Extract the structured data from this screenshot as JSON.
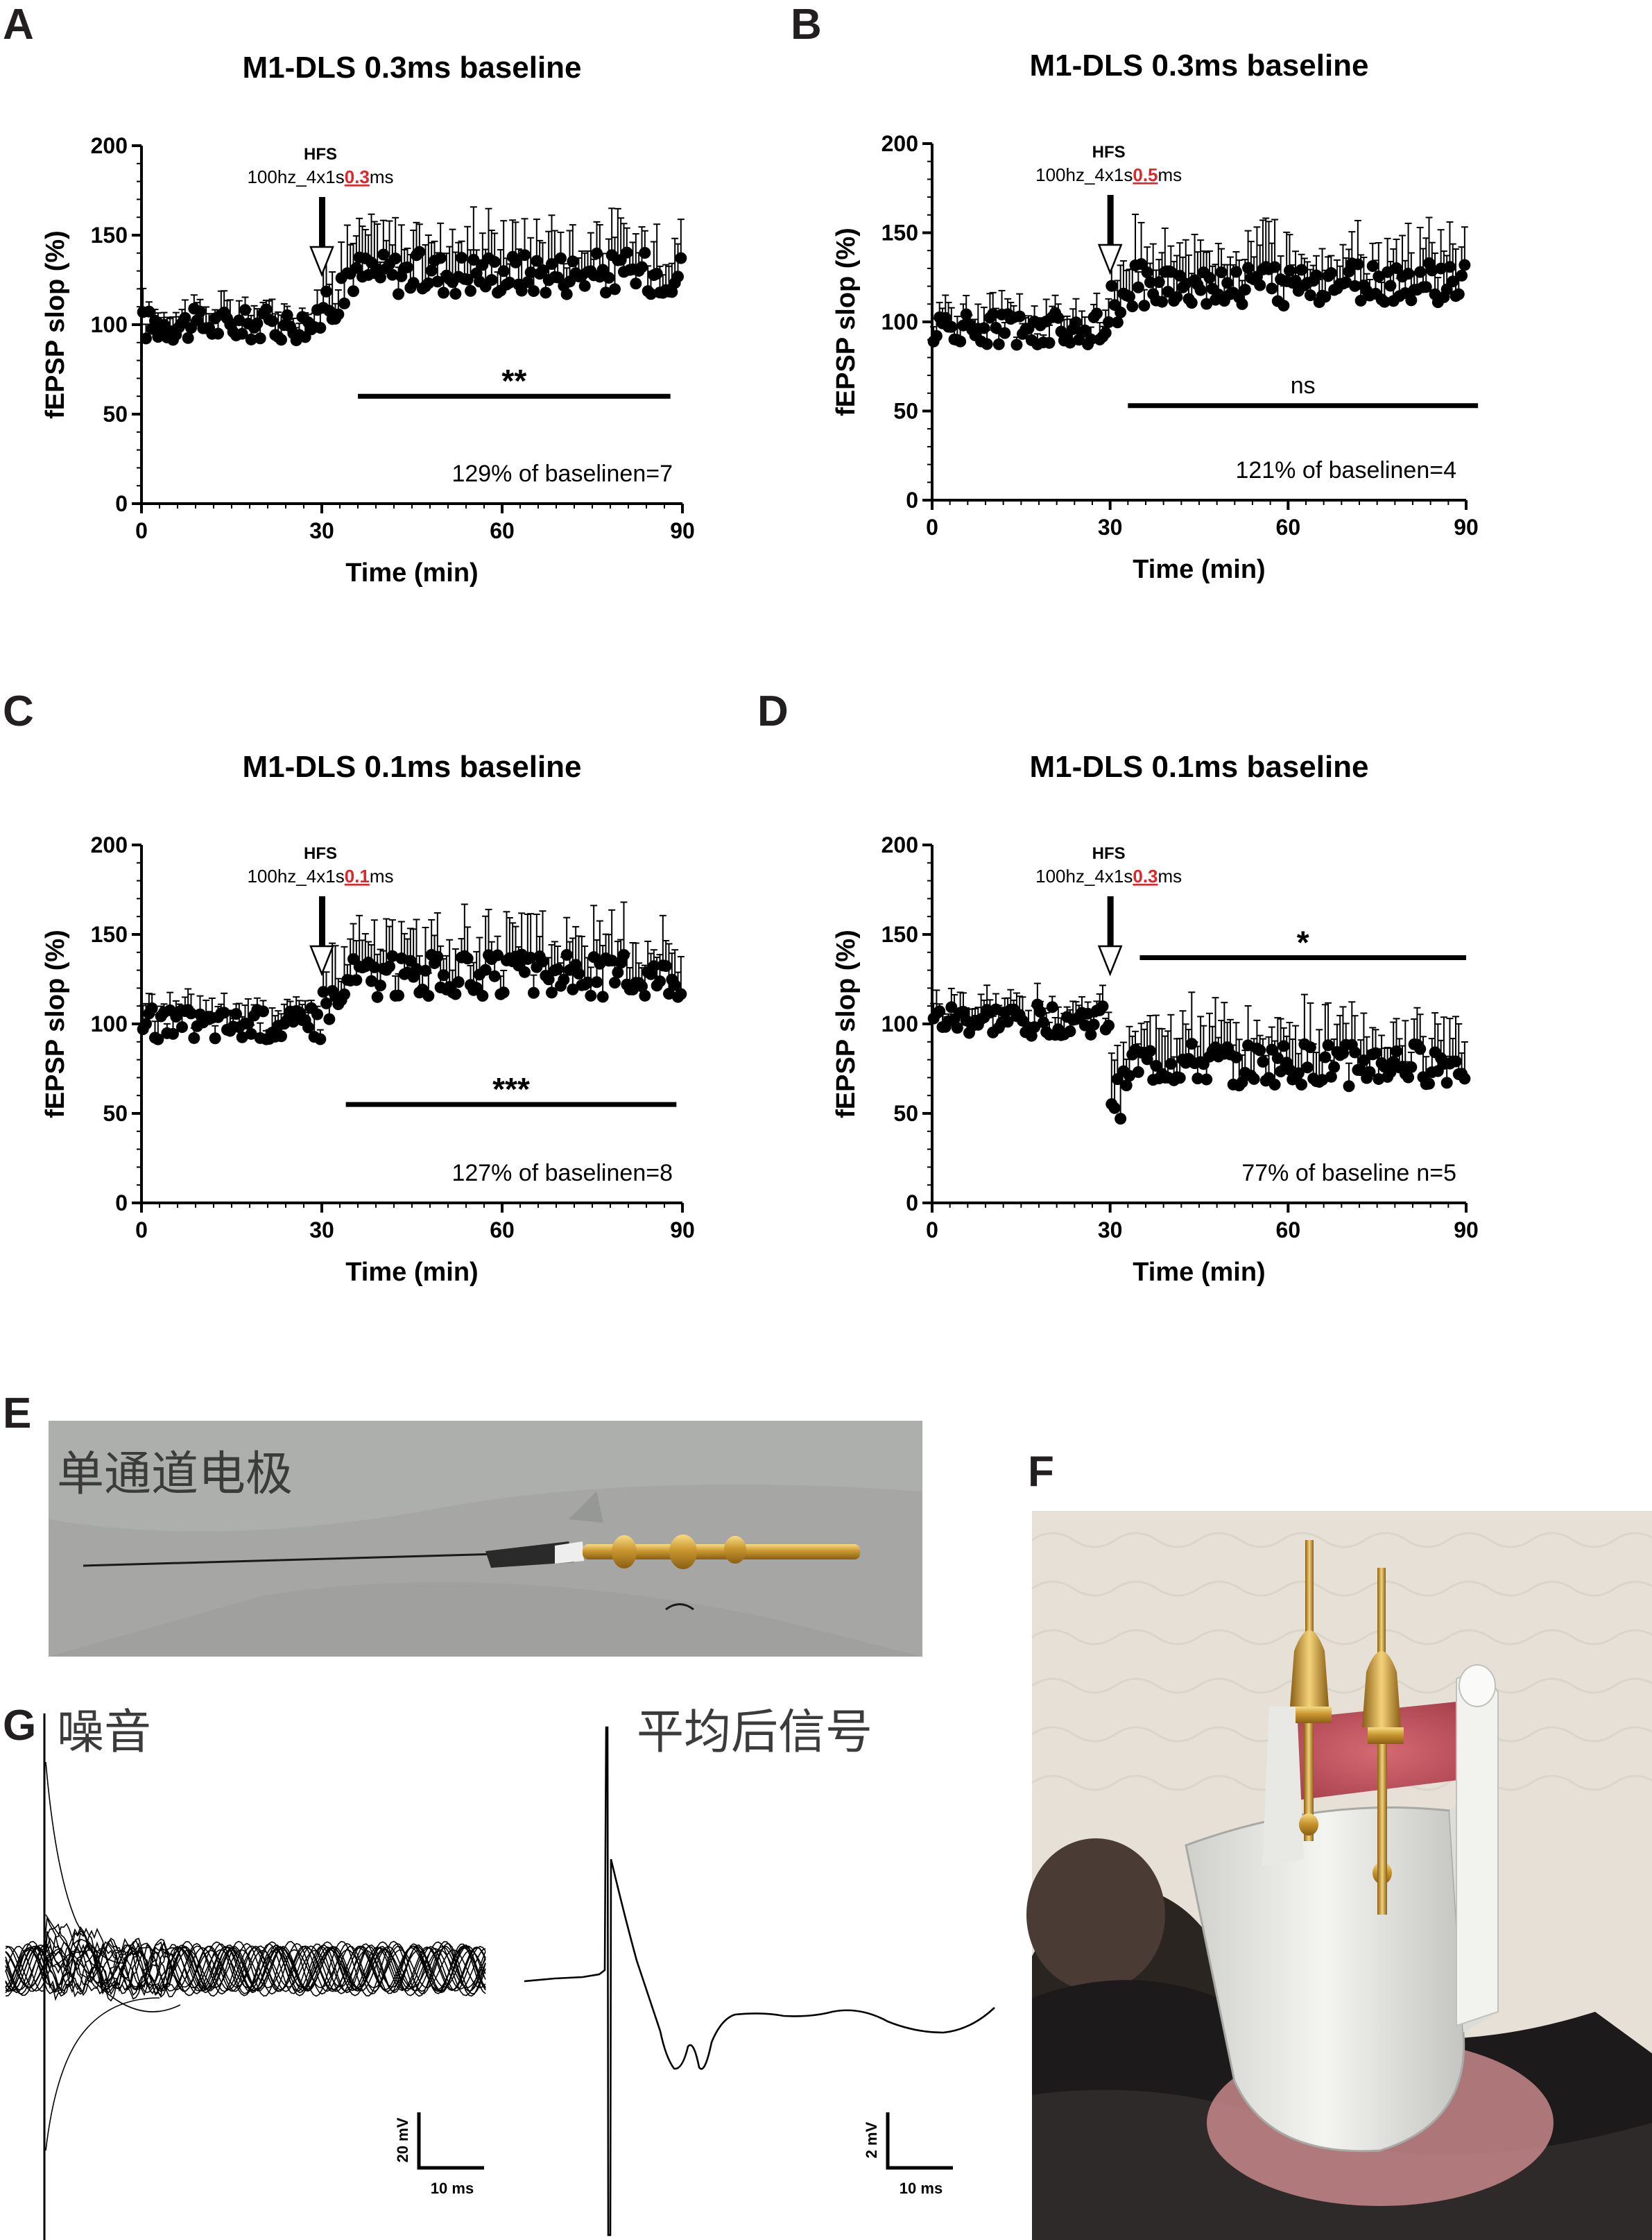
{
  "panel_labels": [
    "A",
    "B",
    "C",
    "D",
    "E",
    "F",
    "G"
  ],
  "chart_data": [
    {
      "id": "A",
      "type": "scatter",
      "title": "M1-DLS 0.3ms baseline",
      "xlabel": "Time (min)",
      "ylabel": "fEPSP slop (%)",
      "xlim": [
        0,
        90
      ],
      "ylim": [
        0,
        200
      ],
      "xticks": [
        "0",
        "30",
        "60",
        "90"
      ],
      "yticks": [
        "0",
        "50",
        "100",
        "150",
        "200"
      ],
      "hfs": {
        "label": "HFS",
        "protocol_pre": "100hz_4x1s",
        "protocol_val": "0.3",
        "protocol_post": "ms",
        "time": 30
      },
      "significance": "**",
      "sig_bar": [
        36,
        88
      ],
      "sig_level": 60,
      "note_left": "129% of baseline",
      "note_right": "n=7",
      "baseline_mean": 100,
      "post_mean": 129,
      "n_points": 180
    },
    {
      "id": "B",
      "type": "scatter",
      "title": "M1-DLS 0.3ms baseline",
      "xlabel": "Time (min)",
      "ylabel": "fEPSP slop (%)",
      "xlim": [
        0,
        90
      ],
      "ylim": [
        0,
        200
      ],
      "xticks": [
        "0",
        "30",
        "60",
        "90"
      ],
      "yticks": [
        "0",
        "50",
        "100",
        "150",
        "200"
      ],
      "hfs": {
        "label": "HFS",
        "protocol_pre": "100hz_4x1s",
        "protocol_val": "0.5",
        "protocol_post": "ms",
        "time": 30
      },
      "significance": "ns",
      "sig_bar": [
        33,
        92
      ],
      "sig_level": 53,
      "note_left": "121% of baseline",
      "note_right": "n=4",
      "baseline_mean": 96,
      "post_mean": 121,
      "n_points": 180
    },
    {
      "id": "C",
      "type": "scatter",
      "title": "M1-DLS 0.1ms baseline",
      "xlabel": "Time (min)",
      "ylabel": "fEPSP slop (%)",
      "xlim": [
        0,
        90
      ],
      "ylim": [
        0,
        200
      ],
      "xticks": [
        "0",
        "30",
        "60",
        "90"
      ],
      "yticks": [
        "0",
        "50",
        "100",
        "150",
        "200"
      ],
      "hfs": {
        "label": "HFS",
        "protocol_pre": "100hz_4x1s",
        "protocol_val": "0.1",
        "protocol_post": "ms",
        "time": 30
      },
      "significance": "***",
      "sig_bar": [
        34,
        89
      ],
      "sig_level": 55,
      "note_left": "127% of baseline",
      "note_right": "n=8",
      "baseline_mean": 100,
      "post_mean": 127,
      "n_points": 180
    },
    {
      "id": "D",
      "type": "scatter",
      "title": "M1-DLS 0.1ms baseline",
      "xlabel": "Time (min)",
      "ylabel": "fEPSP slop (%)",
      "xlim": [
        0,
        90
      ],
      "ylim": [
        0,
        200
      ],
      "xticks": [
        "0",
        "30",
        "60",
        "90"
      ],
      "yticks": [
        "0",
        "50",
        "100",
        "150",
        "200"
      ],
      "hfs": {
        "label": "HFS",
        "protocol_pre": "100hz_4x1s",
        "protocol_val": "0.3",
        "protocol_post": "ms",
        "time": 30
      },
      "significance": "*",
      "sig_bar": [
        35,
        90
      ],
      "sig_level": 137,
      "note_left": "77% of baseline",
      "note_right": "n=5",
      "baseline_mean": 102,
      "post_mean": 77,
      "n_points": 180
    }
  ],
  "panel_e": {
    "caption": "单通道电极"
  },
  "panel_g": {
    "noise_caption": "噪音",
    "avg_caption": "平均后信号",
    "scale_left": {
      "y": "20 mV",
      "x": "10 ms"
    },
    "scale_right": {
      "y": "2 mV",
      "x": "10 ms"
    }
  },
  "colors": {
    "ink": "#000000",
    "highlight": "#e0262b",
    "label": "#231f20"
  }
}
